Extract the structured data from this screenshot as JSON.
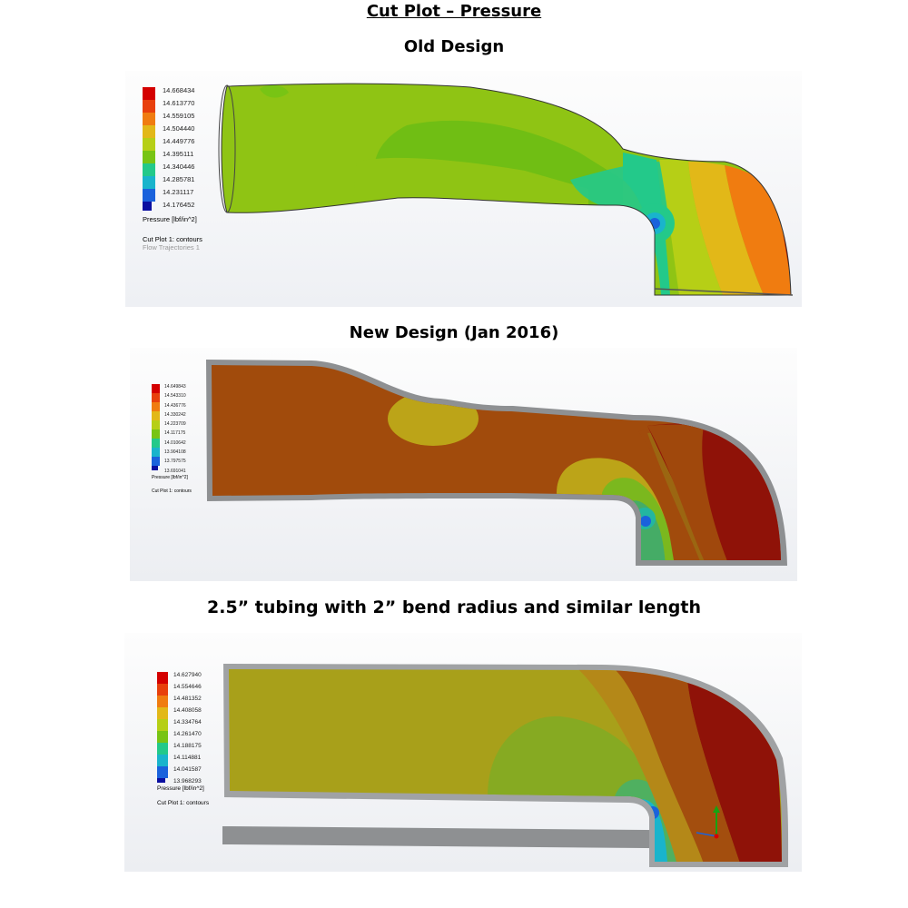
{
  "document": {
    "title": "Cut Plot – Pressure"
  },
  "panels": [
    {
      "heading": "Old Design",
      "legend": {
        "values": [
          "14.668434",
          "14.613770",
          "14.559105",
          "14.504440",
          "14.449776",
          "14.395111",
          "14.340446",
          "14.285781",
          "14.231117",
          "14.176452"
        ],
        "units_label": "Pressure [lbf/in^2]",
        "notes": [
          "Cut Plot 1: contours",
          "Flow Trajectories 1"
        ]
      }
    },
    {
      "heading": "New Design (Jan 2016)",
      "legend": {
        "values": [
          "14.649843",
          "14.543310",
          "14.436776",
          "14.330242",
          "14.223709",
          "14.117175",
          "14.010642",
          "13.904108",
          "13.797575",
          "13.691041"
        ],
        "units_label": "Pressure [lbf/in^2]",
        "notes": [
          "Cut Plot 1: contours"
        ]
      }
    },
    {
      "heading": "2.5” tubing with 2” bend radius and similar length",
      "legend": {
        "values": [
          "14.627940",
          "14.554646",
          "14.481352",
          "14.408058",
          "14.334764",
          "14.261470",
          "14.188175",
          "14.114881",
          "14.041587",
          "13.968293"
        ],
        "units_label": "Pressure [lbf/in^2]",
        "notes": [
          "Cut Plot 1: contours"
        ]
      }
    }
  ],
  "colors": {
    "scale": [
      "#d40000",
      "#e8400c",
      "#f07c10",
      "#e2b818",
      "#b6cf16",
      "#78c414",
      "#23c98a",
      "#19b4cc",
      "#1a62dc",
      "#0a0fa0"
    ],
    "body_wall": "#8e9092"
  }
}
